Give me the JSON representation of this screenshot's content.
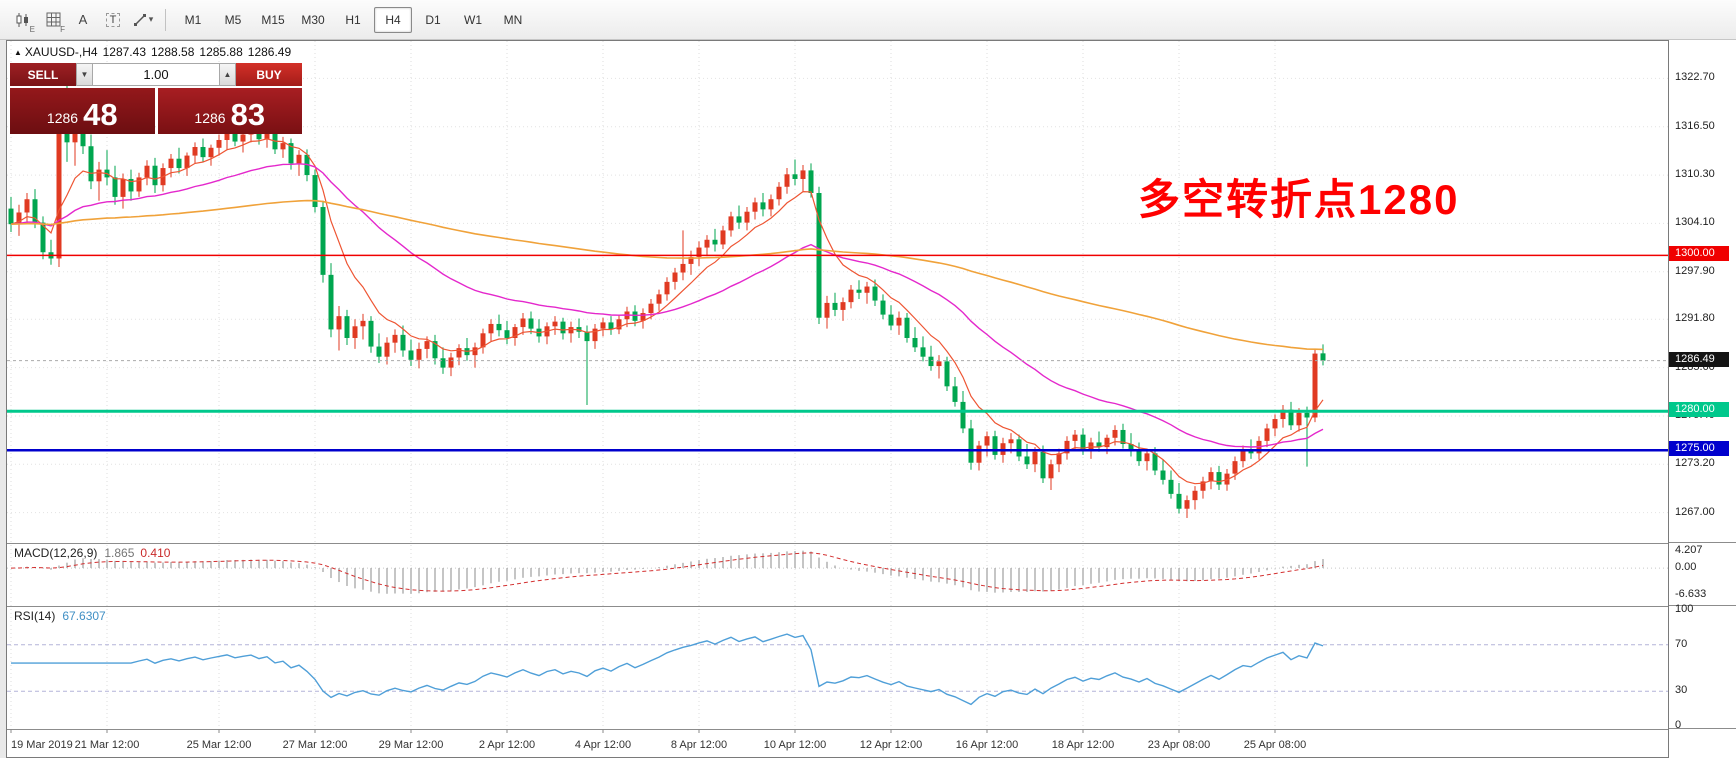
{
  "toolbar": {
    "tool_icons": [
      {
        "name": "candlestick-chart",
        "sub": "E"
      },
      {
        "name": "grid",
        "sub": "F"
      },
      {
        "name": "text-a",
        "label": "A"
      },
      {
        "name": "text-t",
        "label": "T"
      },
      {
        "name": "cursor-tools",
        "caret": "▾"
      }
    ],
    "timeframes": [
      {
        "label": "M1",
        "active": false
      },
      {
        "label": "M5",
        "active": false
      },
      {
        "label": "M15",
        "active": false
      },
      {
        "label": "M30",
        "active": false
      },
      {
        "label": "H1",
        "active": false
      },
      {
        "label": "H4",
        "active": true
      },
      {
        "label": "D1",
        "active": false
      },
      {
        "label": "W1",
        "active": false
      },
      {
        "label": "MN",
        "active": false
      }
    ]
  },
  "symbol_header": {
    "icon": "▲",
    "symbol": "XAUUSD-,H4",
    "o": "1287.43",
    "h": "1288.58",
    "l": "1285.88",
    "c": "1286.49"
  },
  "trade_panel": {
    "sell_label": "SELL",
    "buy_label": "BUY",
    "volume": "1.00",
    "spinner_down": "▼",
    "spinner_up": "▲",
    "bid_big": "1286",
    "bid_frac": "48",
    "ask_big": "1286",
    "ask_frac": "83"
  },
  "annotation": {
    "text": "多空转折点1280",
    "color": "#ff0000"
  },
  "chart_data": {
    "type": "candlestick",
    "symbol": "XAUUSD-",
    "timeframe": "H4",
    "up_color": "#e03a22",
    "down_color": "#00a64f",
    "price_axis": {
      "max": 1327.5,
      "min": 1263.1,
      "labels": [
        "1322.70",
        "1316.50",
        "1310.30",
        "1304.10",
        "1297.90",
        "1291.80",
        "1285.60",
        "1279.40",
        "1273.20",
        "1267.00"
      ]
    },
    "hlines": [
      {
        "price": 1300.0,
        "label": "1300.00",
        "color": "#f00000",
        "width": 1.5
      },
      {
        "price": 1280.0,
        "label": "1280.00",
        "color": "#00c88c",
        "width": 3
      },
      {
        "price": 1275.0,
        "label": "1275.00",
        "color": "#0000cd",
        "width": 2.5
      }
    ],
    "current_price": {
      "value": 1286.49,
      "label": "1286.49",
      "box_color": "#141414"
    },
    "mas": [
      {
        "period": 8,
        "color": "#ee5533",
        "width": 1.2
      },
      {
        "period": 34,
        "color": "#e428cc",
        "width": 1.4
      },
      {
        "period": 150,
        "color": "#f0a23a",
        "width": 1.6
      }
    ],
    "macd": {
      "header": "MACD(12,26,9)",
      "value_main": "1.865",
      "value_signal": "0.410",
      "scale_max": 5.9,
      "scale_min": -9.3,
      "labels": [
        {
          "text": "4.207",
          "value": 4.207
        },
        {
          "text": "0.00",
          "value": 0
        },
        {
          "text": "-6.633",
          "value": -6.633
        }
      ],
      "hist_color": "#a6a6a6",
      "signal_color": "#d32f2f"
    },
    "rsi": {
      "header": "RSI(14)",
      "value": "67.6307",
      "color": "#4f9fd8",
      "levels": [
        70,
        30
      ],
      "labels": [
        {
          "text": "100",
          "value": 100
        },
        {
          "text": "70",
          "value": 70
        },
        {
          "text": "30",
          "value": 30
        },
        {
          "text": "0",
          "value": 0
        }
      ]
    },
    "time_labels": [
      {
        "i": 0,
        "label": "19 Mar 2019"
      },
      {
        "i": 12,
        "label": "21 Mar 12:00"
      },
      {
        "i": 26,
        "label": "25 Mar 12:00"
      },
      {
        "i": 38,
        "label": "27 Mar 12:00"
      },
      {
        "i": 50,
        "label": "29 Mar 12:00"
      },
      {
        "i": 62,
        "label": "2 Apr 12:00"
      },
      {
        "i": 74,
        "label": "4 Apr 12:00"
      },
      {
        "i": 86,
        "label": "8 Apr 12:00"
      },
      {
        "i": 98,
        "label": "10 Apr 12:00"
      },
      {
        "i": 110,
        "label": "12 Apr 12:00"
      },
      {
        "i": 122,
        "label": "16 Apr 12:00"
      },
      {
        "i": 134,
        "label": "18 Apr 12:00"
      },
      {
        "i": 146,
        "label": "23 Apr 08:00"
      },
      {
        "i": 158,
        "label": "25 Apr 08:00"
      }
    ],
    "candles": [
      [
        1306.0,
        1307.5,
        1303.0,
        1304.0
      ],
      [
        1304.0,
        1306.5,
        1302.5,
        1305.5
      ],
      [
        1305.5,
        1308.0,
        1304.0,
        1307.2
      ],
      [
        1307.2,
        1308.5,
        1303.5,
        1304.2
      ],
      [
        1304.2,
        1305.0,
        1299.5,
        1300.4
      ],
      [
        1300.4,
        1302.0,
        1298.8,
        1299.6
      ],
      [
        1299.6,
        1320.5,
        1298.5,
        1316.0
      ],
      [
        1316.0,
        1321.8,
        1312.0,
        1314.5
      ],
      [
        1314.5,
        1319.0,
        1311.5,
        1317.5
      ],
      [
        1317.5,
        1320.0,
        1313.0,
        1314.0
      ],
      [
        1314.0,
        1315.5,
        1308.5,
        1309.5
      ],
      [
        1309.5,
        1312.0,
        1307.0,
        1311.0
      ],
      [
        1311.0,
        1313.5,
        1309.0,
        1310.0
      ],
      [
        1310.0,
        1311.5,
        1306.5,
        1307.5
      ],
      [
        1307.5,
        1310.5,
        1306.0,
        1309.8
      ],
      [
        1309.8,
        1311.0,
        1307.0,
        1308.2
      ],
      [
        1308.2,
        1310.6,
        1307.5,
        1310.0
      ],
      [
        1310.0,
        1312.2,
        1309.0,
        1311.5
      ],
      [
        1311.5,
        1312.5,
        1308.0,
        1309.0
      ],
      [
        1309.0,
        1311.8,
        1308.2,
        1311.2
      ],
      [
        1311.2,
        1313.0,
        1310.0,
        1312.4
      ],
      [
        1312.4,
        1313.8,
        1310.5,
        1311.2
      ],
      [
        1311.2,
        1313.2,
        1310.2,
        1312.8
      ],
      [
        1312.8,
        1314.5,
        1311.8,
        1313.9
      ],
      [
        1313.9,
        1315.0,
        1312.0,
        1312.6
      ],
      [
        1312.6,
        1314.2,
        1311.5,
        1313.8
      ],
      [
        1313.8,
        1315.5,
        1312.8,
        1314.8
      ],
      [
        1314.8,
        1316.5,
        1313.5,
        1315.8
      ],
      [
        1315.8,
        1316.8,
        1314.0,
        1314.6
      ],
      [
        1314.6,
        1316.2,
        1313.2,
        1315.5
      ],
      [
        1315.5,
        1316.9,
        1314.5,
        1316.2
      ],
      [
        1316.2,
        1317.0,
        1314.2,
        1314.9
      ],
      [
        1314.9,
        1316.4,
        1313.8,
        1315.9
      ],
      [
        1315.9,
        1316.6,
        1313.0,
        1313.6
      ],
      [
        1313.6,
        1315.2,
        1312.5,
        1314.4
      ],
      [
        1314.4,
        1315.0,
        1311.0,
        1311.8
      ],
      [
        1311.8,
        1313.5,
        1310.2,
        1312.9
      ],
      [
        1312.9,
        1313.6,
        1309.5,
        1310.3
      ],
      [
        1310.3,
        1311.0,
        1305.5,
        1306.2
      ],
      [
        1306.2,
        1307.0,
        1296.5,
        1297.5
      ],
      [
        1297.5,
        1299.0,
        1289.5,
        1290.5
      ],
      [
        1290.5,
        1293.5,
        1287.8,
        1292.2
      ],
      [
        1292.2,
        1293.0,
        1288.5,
        1289.4
      ],
      [
        1289.4,
        1291.8,
        1288.0,
        1290.9
      ],
      [
        1290.9,
        1292.5,
        1289.2,
        1291.6
      ],
      [
        1291.6,
        1292.2,
        1287.5,
        1288.3
      ],
      [
        1288.3,
        1290.0,
        1286.2,
        1287.0
      ],
      [
        1287.0,
        1289.5,
        1286.0,
        1288.8
      ],
      [
        1288.8,
        1290.5,
        1287.5,
        1289.8
      ],
      [
        1289.8,
        1291.0,
        1287.0,
        1287.8
      ],
      [
        1287.8,
        1289.2,
        1285.8,
        1286.6
      ],
      [
        1286.6,
        1288.8,
        1285.5,
        1288.0
      ],
      [
        1288.0,
        1289.6,
        1286.8,
        1289.0
      ],
      [
        1289.0,
        1289.8,
        1286.0,
        1286.8
      ],
      [
        1286.8,
        1288.2,
        1284.8,
        1285.6
      ],
      [
        1285.6,
        1287.5,
        1284.5,
        1286.9
      ],
      [
        1286.9,
        1288.6,
        1285.9,
        1288.1
      ],
      [
        1288.1,
        1289.4,
        1286.5,
        1287.2
      ],
      [
        1287.2,
        1288.8,
        1285.6,
        1288.2
      ],
      [
        1288.2,
        1290.6,
        1287.4,
        1290.0
      ],
      [
        1290.0,
        1291.8,
        1289.0,
        1291.2
      ],
      [
        1291.2,
        1292.4,
        1289.6,
        1290.4
      ],
      [
        1290.4,
        1291.6,
        1288.6,
        1289.4
      ],
      [
        1289.4,
        1291.2,
        1288.4,
        1290.8
      ],
      [
        1290.8,
        1292.6,
        1289.8,
        1291.9
      ],
      [
        1291.9,
        1292.8,
        1289.9,
        1290.6
      ],
      [
        1290.6,
        1291.8,
        1288.8,
        1289.6
      ],
      [
        1289.6,
        1291.4,
        1288.6,
        1290.9
      ],
      [
        1290.9,
        1292.2,
        1289.8,
        1291.5
      ],
      [
        1291.5,
        1292.0,
        1289.2,
        1290.0
      ],
      [
        1290.0,
        1291.5,
        1288.8,
        1290.8
      ],
      [
        1290.8,
        1291.9,
        1289.4,
        1290.2
      ],
      [
        1290.2,
        1291.0,
        1280.8,
        1289.0
      ],
      [
        1289.0,
        1291.2,
        1288.0,
        1290.6
      ],
      [
        1290.6,
        1292.0,
        1289.6,
        1291.4
      ],
      [
        1291.4,
        1292.2,
        1289.8,
        1290.5
      ],
      [
        1290.5,
        1292.4,
        1289.9,
        1291.8
      ],
      [
        1291.8,
        1293.4,
        1290.8,
        1292.8
      ],
      [
        1292.8,
        1293.6,
        1290.9,
        1291.6
      ],
      [
        1291.6,
        1293.2,
        1290.6,
        1292.6
      ],
      [
        1292.6,
        1294.4,
        1291.8,
        1293.8
      ],
      [
        1293.8,
        1295.6,
        1292.9,
        1295.0
      ],
      [
        1295.0,
        1297.2,
        1294.2,
        1296.6
      ],
      [
        1296.6,
        1298.4,
        1295.6,
        1297.8
      ],
      [
        1297.8,
        1303.2,
        1296.8,
        1298.9
      ],
      [
        1298.9,
        1300.6,
        1297.5,
        1299.8
      ],
      [
        1299.8,
        1301.8,
        1298.6,
        1301.0
      ],
      [
        1301.0,
        1302.6,
        1299.9,
        1302.0
      ],
      [
        1302.0,
        1303.4,
        1300.5,
        1301.4
      ],
      [
        1301.4,
        1303.8,
        1300.8,
        1303.2
      ],
      [
        1303.2,
        1305.6,
        1302.4,
        1305.0
      ],
      [
        1305.0,
        1306.4,
        1303.4,
        1304.2
      ],
      [
        1304.2,
        1306.2,
        1303.2,
        1305.6
      ],
      [
        1305.6,
        1307.4,
        1304.6,
        1306.8
      ],
      [
        1306.8,
        1308.0,
        1305.0,
        1305.9
      ],
      [
        1305.9,
        1307.8,
        1305.0,
        1307.2
      ],
      [
        1307.2,
        1309.4,
        1306.4,
        1308.8
      ],
      [
        1308.8,
        1311.2,
        1307.9,
        1310.4
      ],
      [
        1310.4,
        1312.3,
        1309.0,
        1309.8
      ],
      [
        1309.8,
        1311.6,
        1308.2,
        1310.9
      ],
      [
        1310.9,
        1311.8,
        1307.4,
        1308.0
      ],
      [
        1308.0,
        1308.8,
        1291.2,
        1292.0
      ],
      [
        1292.0,
        1294.8,
        1290.6,
        1293.9
      ],
      [
        1293.9,
        1295.2,
        1292.2,
        1293.0
      ],
      [
        1293.0,
        1294.6,
        1291.6,
        1294.0
      ],
      [
        1294.0,
        1296.2,
        1293.2,
        1295.6
      ],
      [
        1295.6,
        1296.8,
        1294.4,
        1295.2
      ],
      [
        1295.2,
        1296.6,
        1293.8,
        1296.0
      ],
      [
        1296.0,
        1296.9,
        1293.5,
        1294.2
      ],
      [
        1294.2,
        1295.0,
        1291.8,
        1292.4
      ],
      [
        1292.4,
        1293.6,
        1290.4,
        1291.0
      ],
      [
        1291.0,
        1292.8,
        1289.8,
        1292.0
      ],
      [
        1292.0,
        1292.6,
        1288.8,
        1289.4
      ],
      [
        1289.4,
        1290.8,
        1287.6,
        1288.2
      ],
      [
        1288.2,
        1289.6,
        1286.4,
        1287.0
      ],
      [
        1287.0,
        1288.4,
        1285.2,
        1285.8
      ],
      [
        1285.8,
        1287.2,
        1284.2,
        1286.4
      ],
      [
        1286.4,
        1287.0,
        1282.6,
        1283.2
      ],
      [
        1283.2,
        1284.4,
        1280.6,
        1281.2
      ],
      [
        1281.2,
        1282.6,
        1277.2,
        1277.8
      ],
      [
        1277.8,
        1278.9,
        1272.5,
        1273.4
      ],
      [
        1273.4,
        1276.2,
        1272.4,
        1275.6
      ],
      [
        1275.6,
        1277.4,
        1274.2,
        1276.8
      ],
      [
        1276.8,
        1277.5,
        1273.8,
        1274.4
      ],
      [
        1274.4,
        1276.6,
        1273.4,
        1275.9
      ],
      [
        1275.9,
        1277.2,
        1274.6,
        1276.4
      ],
      [
        1276.4,
        1277.0,
        1273.6,
        1274.2
      ],
      [
        1274.2,
        1275.8,
        1272.6,
        1273.2
      ],
      [
        1273.2,
        1275.4,
        1272.2,
        1274.8
      ],
      [
        1274.8,
        1275.6,
        1270.8,
        1271.4
      ],
      [
        1271.4,
        1273.8,
        1269.9,
        1273.2
      ],
      [
        1273.2,
        1275.2,
        1272.2,
        1274.6
      ],
      [
        1274.6,
        1276.8,
        1273.8,
        1276.2
      ],
      [
        1276.2,
        1277.6,
        1275.0,
        1277.0
      ],
      [
        1277.0,
        1277.8,
        1274.4,
        1275.0
      ],
      [
        1275.0,
        1276.6,
        1273.9,
        1276.0
      ],
      [
        1276.0,
        1277.4,
        1274.8,
        1275.4
      ],
      [
        1275.4,
        1277.0,
        1274.5,
        1276.6
      ],
      [
        1276.6,
        1278.2,
        1275.6,
        1277.6
      ],
      [
        1277.6,
        1278.4,
        1275.2,
        1275.8
      ],
      [
        1275.8,
        1277.2,
        1274.2,
        1274.9
      ],
      [
        1274.9,
        1276.0,
        1273.0,
        1273.6
      ],
      [
        1273.6,
        1275.2,
        1272.4,
        1274.6
      ],
      [
        1274.6,
        1275.4,
        1271.8,
        1272.4
      ],
      [
        1272.4,
        1273.8,
        1270.6,
        1271.2
      ],
      [
        1271.2,
        1272.4,
        1268.8,
        1269.4
      ],
      [
        1269.4,
        1270.8,
        1266.9,
        1267.5
      ],
      [
        1267.5,
        1269.2,
        1266.3,
        1268.6
      ],
      [
        1268.6,
        1270.4,
        1267.4,
        1269.8
      ],
      [
        1269.8,
        1271.6,
        1268.8,
        1271.0
      ],
      [
        1271.0,
        1272.8,
        1270.0,
        1272.2
      ],
      [
        1272.2,
        1273.0,
        1269.9,
        1270.6
      ],
      [
        1270.6,
        1272.6,
        1269.8,
        1272.0
      ],
      [
        1272.0,
        1274.2,
        1271.2,
        1273.6
      ],
      [
        1273.6,
        1275.6,
        1272.8,
        1275.0
      ],
      [
        1275.0,
        1276.4,
        1273.9,
        1274.6
      ],
      [
        1274.6,
        1276.8,
        1273.8,
        1276.2
      ],
      [
        1276.2,
        1278.4,
        1275.4,
        1277.8
      ],
      [
        1277.8,
        1279.6,
        1276.8,
        1279.0
      ],
      [
        1279.0,
        1280.8,
        1277.9,
        1280.2
      ],
      [
        1280.2,
        1281.2,
        1277.6,
        1278.2
      ],
      [
        1278.2,
        1280.4,
        1277.4,
        1279.8
      ],
      [
        1279.8,
        1280.6,
        1272.9,
        1279.2
      ],
      [
        1279.2,
        1287.9,
        1278.6,
        1287.4
      ],
      [
        1287.43,
        1288.58,
        1285.88,
        1286.49
      ]
    ]
  }
}
